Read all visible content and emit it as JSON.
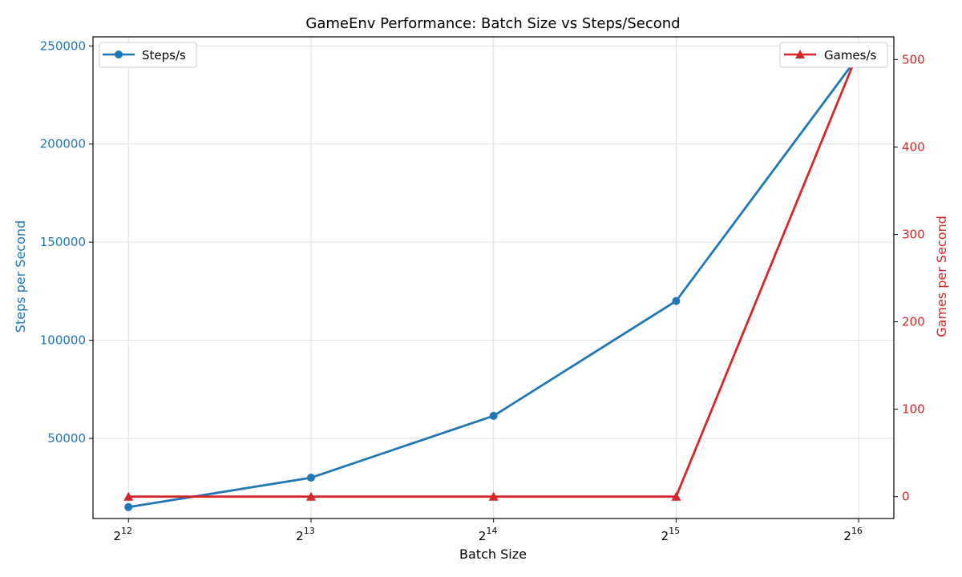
{
  "chart_data": {
    "type": "line",
    "title": "GameEnv Performance: Batch Size vs Steps/Second",
    "xlabel": "Batch Size",
    "ylabel_left": "Steps per Second",
    "ylabel_right": "Games per Second",
    "x_scale": "log2",
    "x": [
      4096,
      8192,
      16384,
      32768,
      65536
    ],
    "x_tick_base": "2",
    "x_tick_exponents": [
      "12",
      "13",
      "14",
      "15",
      "16"
    ],
    "xlim": [
      3580,
      74900
    ],
    "ylim_left": [
      9200,
      254600
    ],
    "ylim_right": [
      -25,
      526
    ],
    "yticks_left": [
      "50000",
      "100000",
      "150000",
      "200000",
      "250000"
    ],
    "yticks_right": [
      "0",
      "100",
      "200",
      "300",
      "400",
      "500"
    ],
    "grid": true,
    "series": [
      {
        "name": "Steps/s",
        "axis": "left",
        "marker": "circle",
        "color": "#1f77b4",
        "values": [
          15000,
          30000,
          61500,
          120000,
          245000
        ]
      },
      {
        "name": "Games/s",
        "axis": "right",
        "marker": "triangle",
        "color": "#d62728",
        "values": [
          0,
          0,
          0,
          0,
          510
        ]
      }
    ],
    "legend_left_placement": "upper-left",
    "legend_right_placement": "upper-right"
  }
}
